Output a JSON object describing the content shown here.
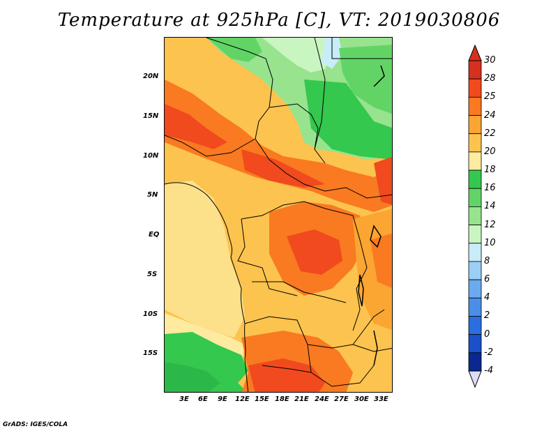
{
  "title": "Temperature at 925hPa [C], VT: 2019030806",
  "credit": "GrADS: IGES/COLA",
  "map": {
    "lat_ticks": [
      "20N",
      "15N",
      "10N",
      "5N",
      "EQ",
      "5S",
      "10S",
      "15S"
    ],
    "lon_ticks": [
      "3E",
      "6E",
      "9E",
      "12E",
      "15E",
      "18E",
      "21E",
      "24E",
      "27E",
      "30E",
      "33E"
    ]
  },
  "colorbar": {
    "labels": [
      "30",
      "28",
      "25",
      "24",
      "22",
      "20",
      "18",
      "16",
      "14",
      "12",
      "10",
      "8",
      "6",
      "4",
      "2",
      "0",
      "-2",
      "-4"
    ],
    "colors": [
      "#d7301f",
      "#f04a1e",
      "#f97a20",
      "#fba533",
      "#fcc34f",
      "#feeb9f",
      "#34c84e",
      "#62d466",
      "#97e38e",
      "#c9f5c1",
      "#c8ecf8",
      "#9ccff4",
      "#6aaaee",
      "#4a8ee8",
      "#2a6ee0",
      "#1a50c8",
      "#0a2890"
    ],
    "top_arrow_color": "#d7301f",
    "bottom_arrow_color": "#dcdcf4"
  }
}
